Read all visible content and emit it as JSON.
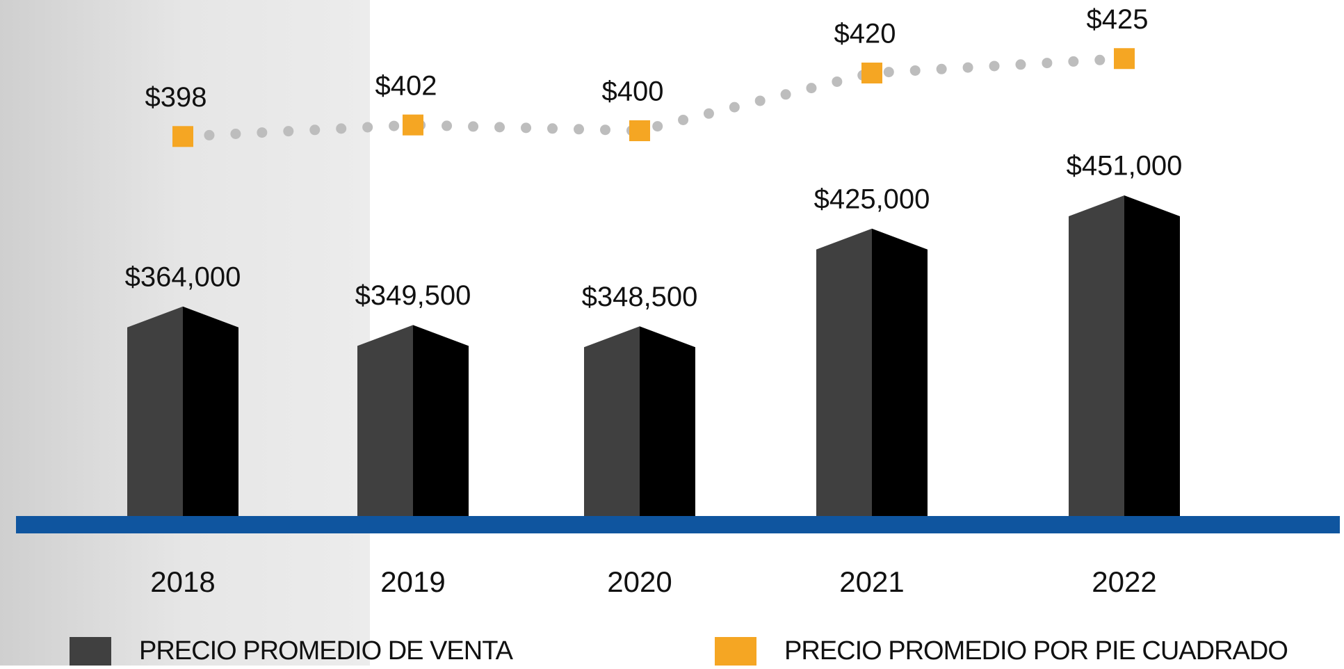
{
  "chart_data": {
    "type": "bar",
    "categories": [
      "2018",
      "2019",
      "2020",
      "2021",
      "2022"
    ],
    "ylim": [
      200000,
      500000
    ],
    "y2lim": [
      380,
      440
    ],
    "series": [
      {
        "name": "PRECIO PROMEDIO DE VENTA",
        "type": "bar",
        "color": "#404040",
        "values": [
          364000,
          349500,
          348500,
          425000,
          451000
        ],
        "value_labels": [
          "$364,000",
          "$349,500",
          "$348,500",
          "$425,000",
          "$451,000"
        ]
      },
      {
        "name": "PRECIO PROMEDIO POR PIE CUADRADO",
        "type": "line",
        "axis": "y2",
        "color": "#f5a623",
        "values": [
          398,
          402,
          400,
          420,
          425
        ],
        "value_labels": [
          "$398",
          "$402",
          "$400",
          "$420",
          "$425"
        ]
      }
    ]
  }
}
